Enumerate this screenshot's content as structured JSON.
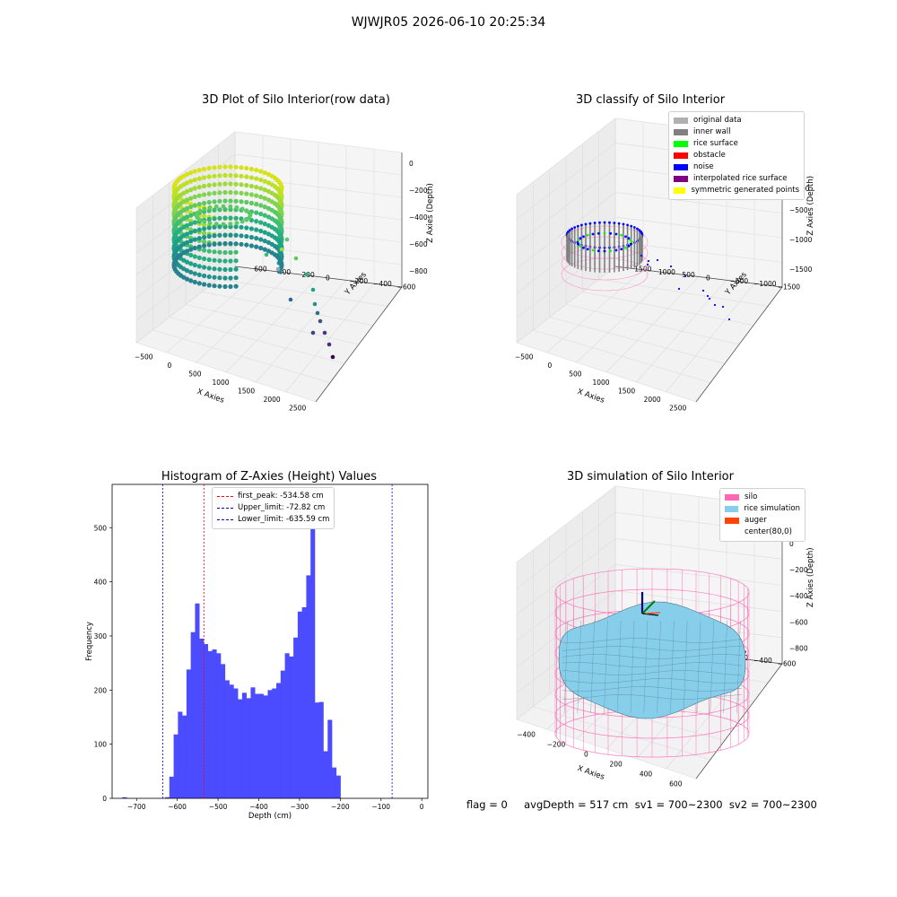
{
  "figure_title": "WJWJR05 2026-06-10 20:25:34",
  "status_line": "flag = 0     avgDepth = 517 cm  sv1 = 700~2300  sv2 = 700~2300",
  "chart_data": [
    {
      "id": "raw",
      "type": "scatter",
      "title": "3D Plot of Silo Interior(row data)",
      "xlabel": "X Axies",
      "ylabel": "Y Axies",
      "zlabel": "Z Axies (Depth)",
      "x_ticks": [
        "−500",
        "0",
        "500",
        "1000",
        "1500",
        "2000",
        "2500"
      ],
      "y_ticks": [
        "600",
        "400",
        "200",
        "0",
        "−200",
        "−400",
        "−600"
      ],
      "z_ticks": [
        "0",
        "−200",
        "−400",
        "−600",
        "−800"
      ]
    },
    {
      "id": "classify",
      "type": "scatter",
      "title": "3D classify of Silo Interior",
      "xlabel": "X Axies",
      "ylabel": "Y Axies",
      "zlabel": "Z Axies (Depth)",
      "x_ticks": [
        "−500",
        "0",
        "500",
        "1000",
        "1500",
        "2000",
        "2500"
      ],
      "y_ticks": [
        "1500",
        "1000",
        "500",
        "0",
        "−500",
        "−1000",
        "−1500"
      ],
      "z_ticks": [
        "500",
        "0",
        "−500",
        "−1000",
        "−1500"
      ],
      "legend": [
        {
          "label": "original data",
          "color": "#b0b0b0"
        },
        {
          "label": "inner wall",
          "color": "#808080"
        },
        {
          "label": "rice surface",
          "color": "#00ff00"
        },
        {
          "label": "obstacle",
          "color": "#ff0000"
        },
        {
          "label": "noise",
          "color": "#0000ff"
        },
        {
          "label": "interpolated rice surface",
          "color": "#800080"
        },
        {
          "label": "symmetric generated points",
          "color": "#ffff00"
        }
      ],
      "legend_overflow_tick": "00"
    },
    {
      "id": "hist",
      "type": "bar",
      "title": "Histogram of Z-Axies (Height) Values",
      "xlabel": "Depth (cm)",
      "ylabel": "Frequency",
      "xlim": [
        -760,
        15
      ],
      "ylim": [
        0,
        580
      ],
      "x_ticks": [
        -700,
        -600,
        -500,
        -400,
        -300,
        -200,
        -100,
        0
      ],
      "x_tick_labels": [
        "−700",
        "−600",
        "−500",
        "−400",
        "−300",
        "−200",
        "−100",
        "0"
      ],
      "y_ticks": [
        0,
        100,
        200,
        300,
        400,
        500
      ],
      "bin_width": 10.5,
      "bin_starts": [
        -735,
        -724.5,
        -714,
        -703.5,
        -693,
        -682.5,
        -672,
        -661.5,
        -651,
        -640.5,
        -630,
        -619.5,
        -609,
        -598.5,
        -588,
        -577.5,
        -567,
        -556.5,
        -546,
        -535.5,
        -525,
        -514.5,
        -504,
        -493.5,
        -483,
        -472.5,
        -462,
        -451.5,
        -441,
        -430.5,
        -420,
        -409.5,
        -399,
        -388.5,
        -378,
        -367.5,
        -357,
        -346.5,
        -336,
        -325.5,
        -315,
        -304.5,
        -294,
        -283.5,
        -273,
        -262.5,
        -252,
        -241.5,
        -231,
        -220.5,
        -210,
        -199.5,
        -189,
        -178.5,
        -168,
        -157.5,
        -147,
        -136.5,
        -126,
        -115.5,
        -105,
        -94.5,
        -84,
        -73.5,
        -63,
        -52.5,
        -42,
        -31.5,
        -21
      ],
      "counts": [
        2,
        0,
        0,
        0,
        0,
        0,
        0,
        0,
        0,
        0,
        2,
        40,
        118,
        160,
        153,
        238,
        307,
        360,
        295,
        285,
        272,
        275,
        268,
        248,
        218,
        210,
        203,
        183,
        195,
        185,
        205,
        193,
        193,
        190,
        200,
        203,
        213,
        236,
        268,
        262,
        297,
        345,
        353,
        412,
        554,
        177,
        88,
        0,
        0,
        0,
        0,
        0,
        0,
        0,
        0,
        0,
        0,
        0,
        0,
        0,
        0,
        0,
        0,
        0,
        0,
        0,
        0,
        0,
        0
      ],
      "counts_note_tail": [
        178,
        87,
        145,
        57,
        42
      ],
      "vlines": [
        {
          "value": -534.58,
          "label": "first_peak: -534.58 cm",
          "color": "#ff0000"
        },
        {
          "value": -72.82,
          "label": "Upper_limit: -72.82 cm",
          "color": "#0000cc"
        },
        {
          "value": -635.59,
          "label": "Lower_limit: -635.59 cm",
          "color": "#0000cc"
        }
      ]
    },
    {
      "id": "sim",
      "type": "surface",
      "title": "3D simulation of Silo Interior",
      "xlabel": "X Axies",
      "ylabel": "Y Axies",
      "zlabel": "Z Axies (Depth)",
      "x_ticks": [
        "−400",
        "−200",
        "0",
        "200",
        "400",
        "600"
      ],
      "y_ticks": [
        "600",
        "400",
        "200",
        "0",
        "−200",
        "−400",
        "−600"
      ],
      "z_ticks": [
        "200",
        "0",
        "−200",
        "−400",
        "−600",
        "−800"
      ],
      "legend": [
        {
          "label": "silo",
          "color": "#ff69b4"
        },
        {
          "label": "rice simulation",
          "color": "#87ceeb"
        },
        {
          "label": "auger",
          "color": "#ff4500"
        },
        {
          "label": "center(80,0)",
          "color": ""
        }
      ]
    }
  ]
}
